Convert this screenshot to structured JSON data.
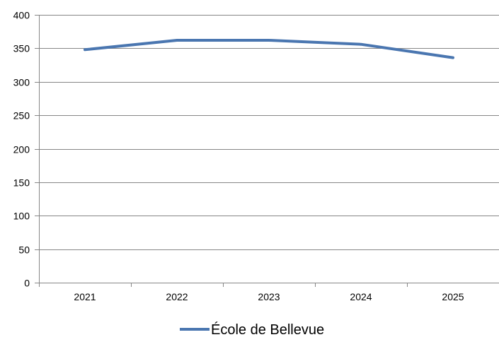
{
  "chart_data": {
    "type": "line",
    "categories": [
      "2021",
      "2022",
      "2023",
      "2024",
      "2025"
    ],
    "series": [
      {
        "name": "École de Bellevue",
        "values": [
          348,
          362,
          362,
          356,
          336
        ],
        "color": "#4a76b0"
      }
    ],
    "ylim": [
      0,
      400
    ],
    "yticks": [
      0,
      50,
      100,
      150,
      200,
      250,
      300,
      350,
      400
    ],
    "grid": true,
    "gridColor": "#868686",
    "axisColor": "#868686",
    "legend": "bottom"
  }
}
